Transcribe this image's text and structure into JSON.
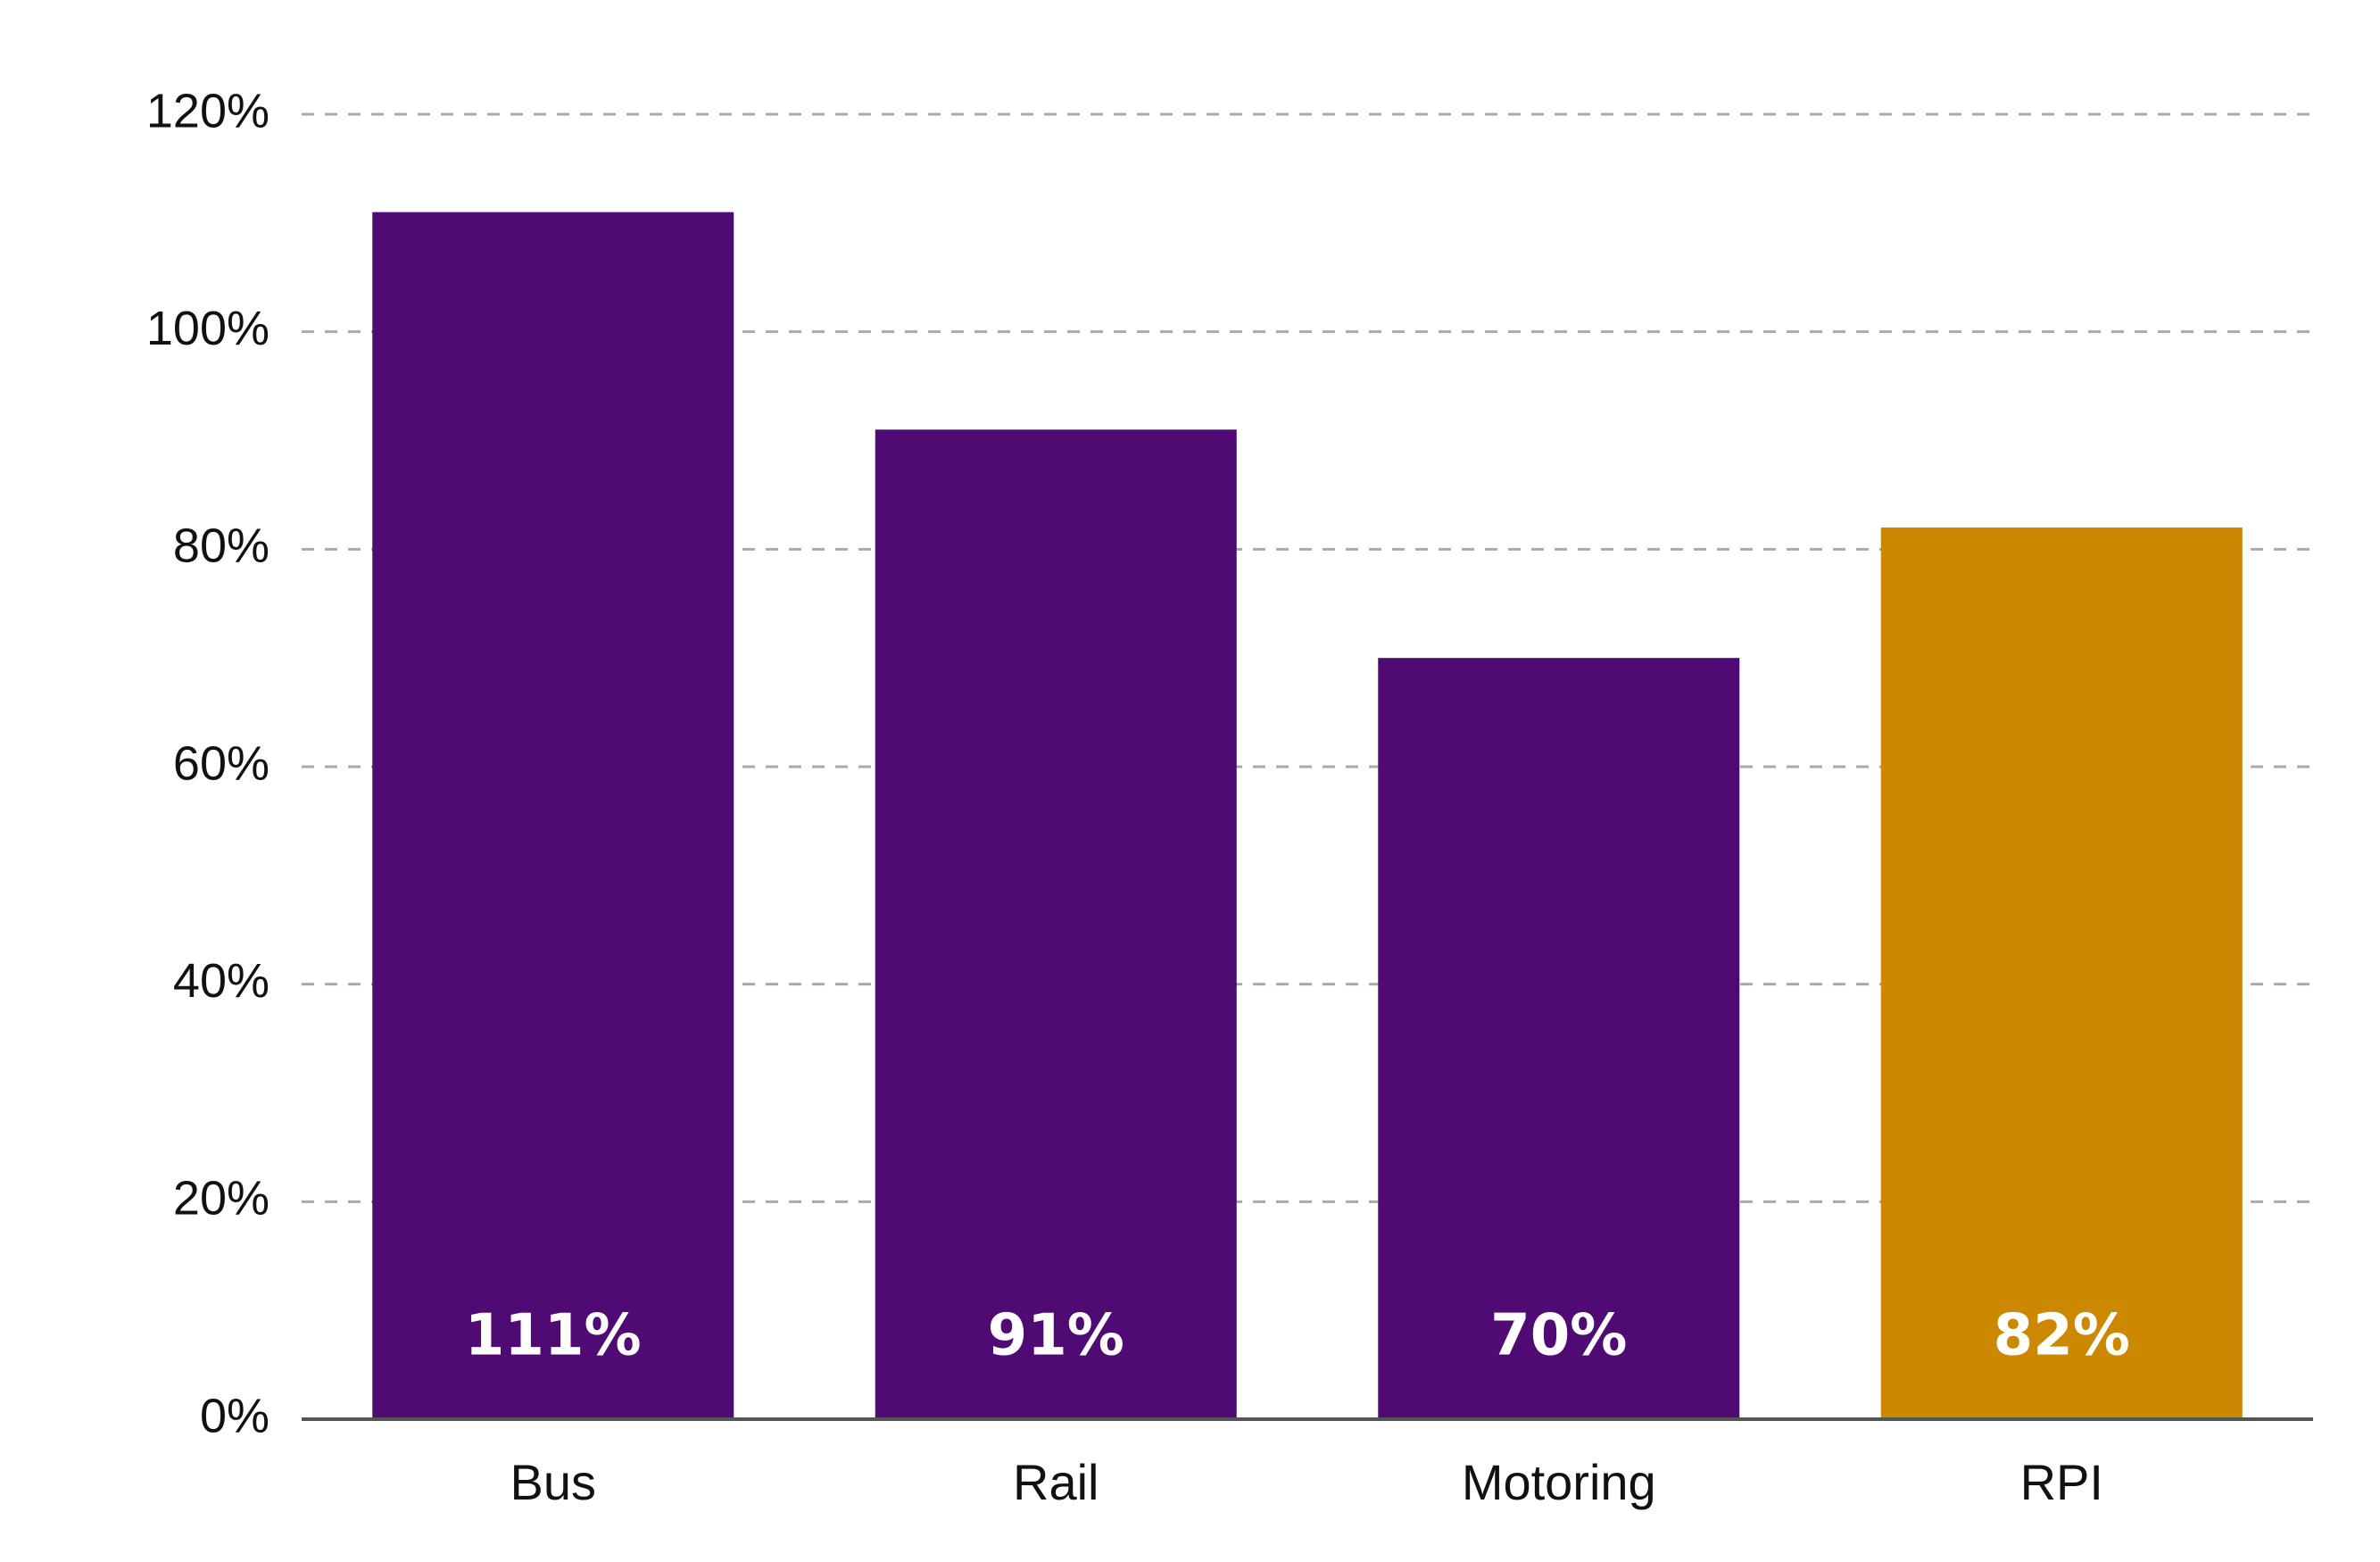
{
  "chart_data": {
    "type": "bar",
    "categories": [
      "Bus",
      "Rail",
      "Motoring",
      "RPI"
    ],
    "values": [
      111,
      91,
      70,
      82
    ],
    "data_labels": [
      "111%",
      "91%",
      "70%",
      "82%"
    ],
    "bar_colors": [
      "#500a73",
      "#500a73",
      "#500a73",
      "#cc8800"
    ],
    "ylim": [
      0,
      120
    ],
    "yticks": [
      0,
      20,
      40,
      60,
      80,
      100,
      120
    ],
    "ytick_labels": [
      "0%",
      "20%",
      "40%",
      "60%",
      "80%",
      "100%",
      "120%"
    ],
    "grid": "horizontal dashed",
    "legend": "none"
  },
  "colors": {
    "grid": "#aaaaaa",
    "axis": "#555555"
  }
}
